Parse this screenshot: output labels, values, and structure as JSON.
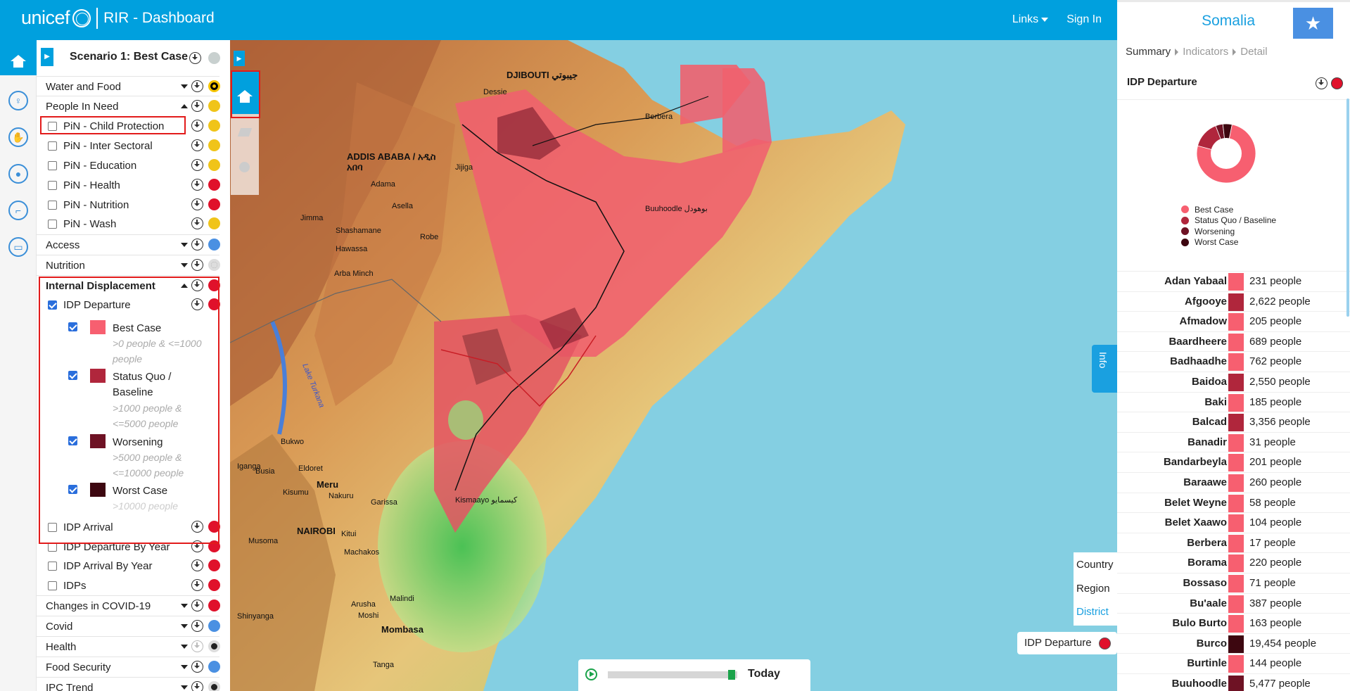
{
  "header": {
    "logo": "unicef",
    "app_title": "RIR - Dashboard",
    "links_label": "Links",
    "signin_label": "Sign In",
    "country": "Somalia",
    "star_icon": "★"
  },
  "sidebar": {
    "scenario_title": "Scenario 1: Best Case",
    "categories": [
      {
        "label": "Water and Food",
        "color": "#f5c400"
      },
      {
        "label": "People In Need",
        "color": "#f0c419"
      },
      {
        "label": "Access",
        "color": "#4a90e2"
      },
      {
        "label": "Nutrition",
        "color": "#9e9e9e"
      },
      {
        "label": "Internal Displacement",
        "color": "#e0112b"
      },
      {
        "label": "Changes in COVID-19",
        "color": "#e0112b"
      },
      {
        "label": "Covid",
        "color": "#4a90e2"
      },
      {
        "label": "Health",
        "color": "#9e9e9e"
      },
      {
        "label": "Food Security",
        "color": "#4a90e2"
      },
      {
        "label": "IPC Trend",
        "color": "#9e9e9e"
      }
    ],
    "pin_items": [
      {
        "label": "PiN - Child Protection",
        "color": "#f0c419"
      },
      {
        "label": "PiN - Inter Sectoral",
        "color": "#f0c419"
      },
      {
        "label": "PiN - Education",
        "color": "#f0c419"
      },
      {
        "label": "PiN - Health",
        "color": "#e0112b"
      },
      {
        "label": "PiN - Nutrition",
        "color": "#e0112b"
      },
      {
        "label": "PiN - Wash",
        "color": "#f0c419"
      }
    ],
    "idp_departure": {
      "label": "IDP Departure",
      "color": "#e0112b"
    },
    "legend": [
      {
        "name": "Best Case",
        "range": ">0 people & <=1000 people",
        "color": "#f75f70"
      },
      {
        "name": "Status Quo / Baseline",
        "range": ">1000 people & <=5000 people",
        "color": "#b0263c"
      },
      {
        "name": "Worsening",
        "range": ">5000 people & <=10000 people",
        "color": "#6e1224"
      },
      {
        "name": "Worst Case",
        "range": ">10000 people",
        "color": "#3d0710"
      }
    ],
    "idp_items": [
      {
        "label": "IDP Arrival",
        "color": "#e0112b"
      },
      {
        "label": "IDP Departure By Year",
        "color": "#e0112b"
      },
      {
        "label": "IDP Arrival By Year",
        "color": "#e0112b"
      },
      {
        "label": "IDPs",
        "color": "#e0112b"
      }
    ]
  },
  "map": {
    "labels": [
      "DJIBOUTI جيبوتي",
      "ADDIS ABABA / አዲስ",
      "አበባ",
      "NAIROBI",
      "Meru",
      "Garissa",
      "Mombasa",
      "Malindi",
      "Kismaayo كيسمايو",
      "Buuhoodle بوهودل",
      "Berbera",
      "Adama",
      "Asella",
      "Dessie",
      "Jijiga",
      "Hawassa",
      "Arba Minch",
      "Robe",
      "Shashamane",
      "Jimma",
      "Eldoret",
      "Kisumu",
      "Nakuru",
      "Kitui",
      "Machakos",
      "Arusha",
      "Moshi",
      "Tanga",
      "Musoma",
      "Shinyanga",
      "Bukwo",
      "Busia",
      "Iganga",
      "Lake Turkana"
    ],
    "levels": [
      "Country",
      "Region",
      "District"
    ],
    "active_level": "District",
    "layer_badge": "IDP Departure",
    "layer_color": "#e0112b",
    "info_label": "Info",
    "timeline_label": "Today",
    "timeline_progress": 0.93
  },
  "summary": {
    "breadcrumb": [
      "Summary",
      "Indicators",
      "Detail"
    ],
    "title": "IDP Departure",
    "donut_legend": [
      {
        "label": "Best Case",
        "color": "#f75f70",
        "share": 76
      },
      {
        "label": "Status Quo / Baseline",
        "color": "#b0263c",
        "share": 15
      },
      {
        "label": "Worsening",
        "color": "#6e1224",
        "share": 4
      },
      {
        "label": "Worst Case",
        "color": "#3d0710",
        "share": 5
      }
    ],
    "rows": [
      {
        "name": "Adan Yabaal",
        "value": "231 people",
        "color": "#f75f70"
      },
      {
        "name": "Afgooye",
        "value": "2,622 people",
        "color": "#b0263c"
      },
      {
        "name": "Afmadow",
        "value": "205 people",
        "color": "#f75f70"
      },
      {
        "name": "Baardheere",
        "value": "689 people",
        "color": "#f75f70"
      },
      {
        "name": "Badhaadhe",
        "value": "762 people",
        "color": "#f75f70"
      },
      {
        "name": "Baidoa",
        "value": "2,550 people",
        "color": "#b0263c"
      },
      {
        "name": "Baki",
        "value": "185 people",
        "color": "#f75f70"
      },
      {
        "name": "Balcad",
        "value": "3,356 people",
        "color": "#b0263c"
      },
      {
        "name": "Banadir",
        "value": "31 people",
        "color": "#f75f70"
      },
      {
        "name": "Bandarbeyla",
        "value": "201 people",
        "color": "#f75f70"
      },
      {
        "name": "Baraawe",
        "value": "260 people",
        "color": "#f75f70"
      },
      {
        "name": "Belet Weyne",
        "value": "58 people",
        "color": "#f75f70"
      },
      {
        "name": "Belet Xaawo",
        "value": "104 people",
        "color": "#f75f70"
      },
      {
        "name": "Berbera",
        "value": "17 people",
        "color": "#f75f70"
      },
      {
        "name": "Borama",
        "value": "220 people",
        "color": "#f75f70"
      },
      {
        "name": "Bossaso",
        "value": "71 people",
        "color": "#f75f70"
      },
      {
        "name": "Bu'aale",
        "value": "387 people",
        "color": "#f75f70"
      },
      {
        "name": "Bulo Burto",
        "value": "163 people",
        "color": "#f75f70"
      },
      {
        "name": "Burco",
        "value": "19,454 people",
        "color": "#3d0710"
      },
      {
        "name": "Burtinle",
        "value": "144 people",
        "color": "#f75f70"
      },
      {
        "name": "Buuhoodle",
        "value": "5,477 people",
        "color": "#6e1224"
      }
    ]
  }
}
